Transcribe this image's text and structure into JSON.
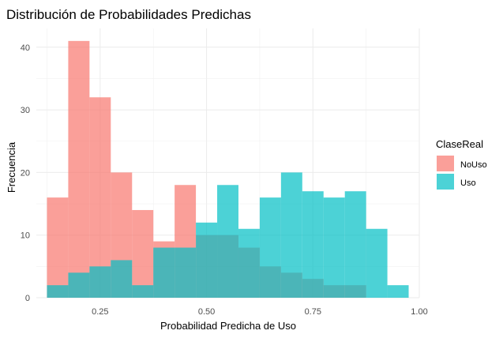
{
  "chart_data": {
    "type": "bar",
    "title": "Distribución de Probabilidades Predichas",
    "xlabel": "Probabilidad Predicha de Uso",
    "ylabel": "Frecuencia",
    "xlim": [
      0.1,
      1.0
    ],
    "ylim": [
      0,
      43
    ],
    "x_ticks": [
      "0.25",
      "0.50",
      "0.75",
      "1.00"
    ],
    "x_tick_values": [
      0.25,
      0.5,
      0.75,
      1.0
    ],
    "y_ticks": [
      "0",
      "10",
      "20",
      "30",
      "40"
    ],
    "y_tick_values": [
      0,
      10,
      20,
      30,
      40
    ],
    "grid": true,
    "legend": {
      "title": "ClaseReal",
      "position": "right"
    },
    "bin_edges": [
      0.125,
      0.175,
      0.225,
      0.275,
      0.325,
      0.375,
      0.425,
      0.475,
      0.525,
      0.575,
      0.625,
      0.675,
      0.725,
      0.775,
      0.825,
      0.875,
      0.925,
      0.975
    ],
    "series": [
      {
        "name": "NoUso",
        "color": "#F8766D",
        "values": [
          16,
          41,
          32,
          20,
          14,
          9,
          18,
          10,
          10,
          8,
          5,
          4,
          3,
          2,
          2,
          0,
          0
        ]
      },
      {
        "name": "Uso",
        "color": "#00BFC4",
        "values": [
          2,
          4,
          5,
          6,
          2,
          8,
          8,
          12,
          18,
          11,
          16,
          20,
          17,
          16,
          17,
          11,
          2
        ]
      }
    ]
  }
}
